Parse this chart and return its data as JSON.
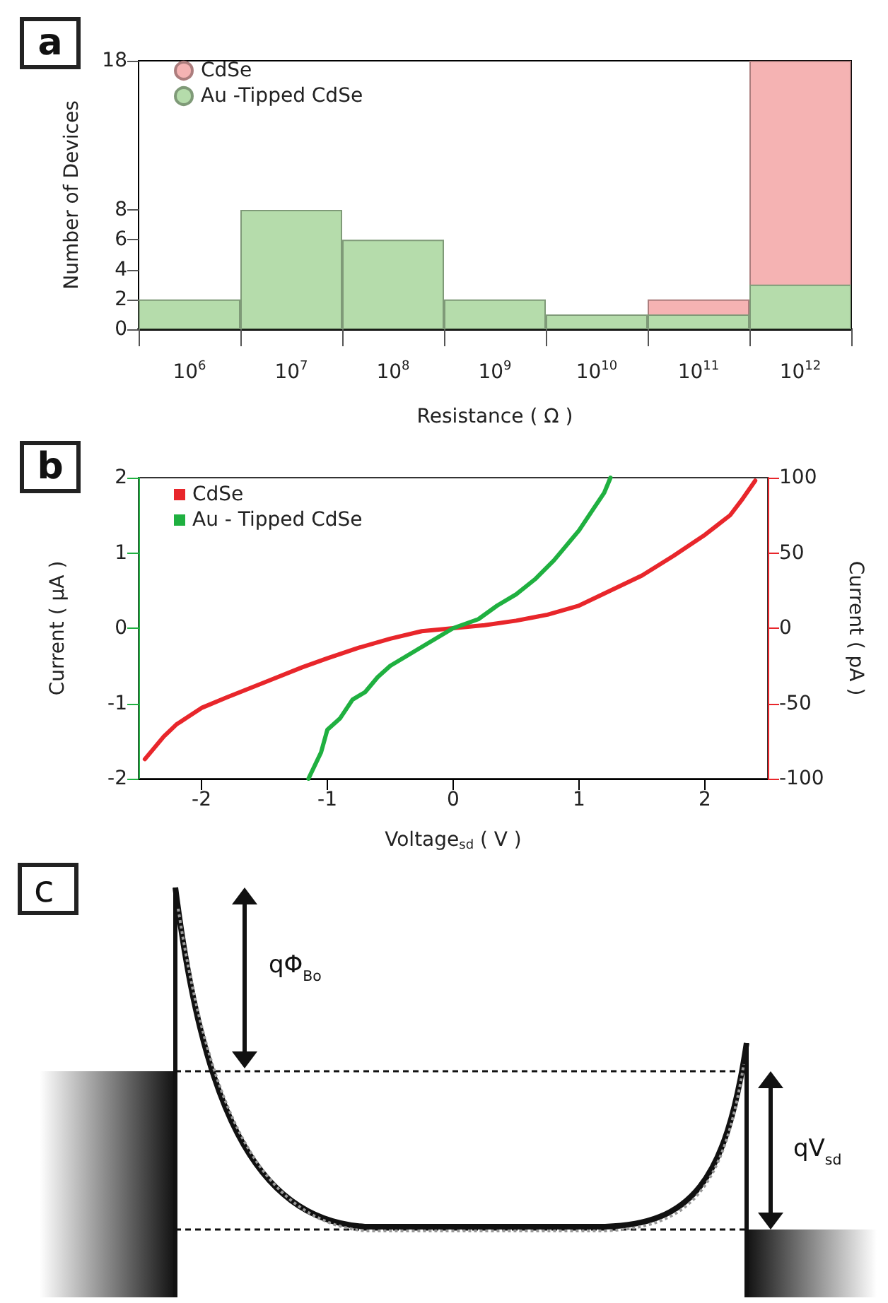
{
  "chart_data": [
    {
      "type": "bar",
      "annotations": [
        "a"
      ],
      "xlabel": "Resistance ( Ω )",
      "ylabel": "Number of Devices",
      "categories": [
        "10$^{6}$",
        "10$^{7}$",
        "10$^{8}$",
        "10$^{9}$",
        "10$^{10}$",
        "10$^{11}$",
        "10$^{12}$"
      ],
      "series": [
        {
          "name": "CdSe",
          "color": "#f5b3b3",
          "values": [
            null,
            null,
            null,
            null,
            null,
            2,
            18
          ]
        },
        {
          "name": "Au -Tipped CdSe",
          "color": "#b5dcab",
          "values": [
            2,
            8,
            6,
            2,
            1,
            1,
            3
          ]
        }
      ],
      "ylim": [
        0,
        18
      ],
      "yticks": [
        0,
        2,
        4,
        6,
        8,
        18
      ],
      "grid": false,
      "legend": "top left"
    },
    {
      "type": "line",
      "annotations": [
        "b"
      ],
      "xlabel": "Voltage$_{sd}$ ( V )",
      "ylabel": "Current ( μA )",
      "y2label": "Current ( pA )",
      "series": [
        {
          "name": "CdSe",
          "color": "#e8262b",
          "axis": "y2",
          "x": [
            -2.45,
            -2.3,
            -2.2,
            -2.0,
            -1.8,
            -1.5,
            -1.2,
            -1.0,
            -0.75,
            -0.5,
            -0.25,
            0,
            0.25,
            0.5,
            0.75,
            1.0,
            1.25,
            1.5,
            1.75,
            2.0,
            2.2,
            2.3,
            2.4
          ],
          "values": [
            -87,
            -72,
            -64,
            -53,
            -46,
            -36,
            -26,
            -20,
            -13,
            -7,
            -2,
            0,
            2,
            5,
            9,
            15,
            25,
            35,
            48,
            62,
            75,
            86,
            98
          ]
        },
        {
          "name": "Au - Tipped CdSe",
          "color": "#1fb040",
          "x": [
            -1.15,
            -1.05,
            -1.0,
            -0.9,
            -0.8,
            -0.7,
            -0.6,
            -0.5,
            -0.35,
            -0.2,
            0,
            0.2,
            0.35,
            0.5,
            0.65,
            0.8,
            0.9,
            1.0,
            1.1,
            1.2,
            1.25
          ],
          "values": [
            -2.0,
            -1.65,
            -1.35,
            -1.2,
            -0.95,
            -0.85,
            -0.65,
            -0.5,
            -0.35,
            -0.2,
            0,
            0.12,
            0.3,
            0.45,
            0.65,
            0.9,
            1.1,
            1.3,
            1.55,
            1.8,
            2.0
          ]
        }
      ],
      "xlim": [
        -2.5,
        2.5
      ],
      "xticks": [
        -2,
        -1,
        0,
        1,
        2
      ],
      "ylim": [
        -2,
        2
      ],
      "yticks": [
        -2,
        -1,
        0,
        1,
        2
      ],
      "y2lim": [
        -100,
        100
      ],
      "y2ticks": [
        -100,
        -50,
        0,
        50,
        100
      ],
      "grid": false,
      "legend": "top left",
      "marker": "none",
      "line_style": "solid"
    },
    {
      "type": "other",
      "annotations": [
        "c",
        "qΦ$_{Bo}$",
        "qV$_{sd}$"
      ]
    }
  ]
}
